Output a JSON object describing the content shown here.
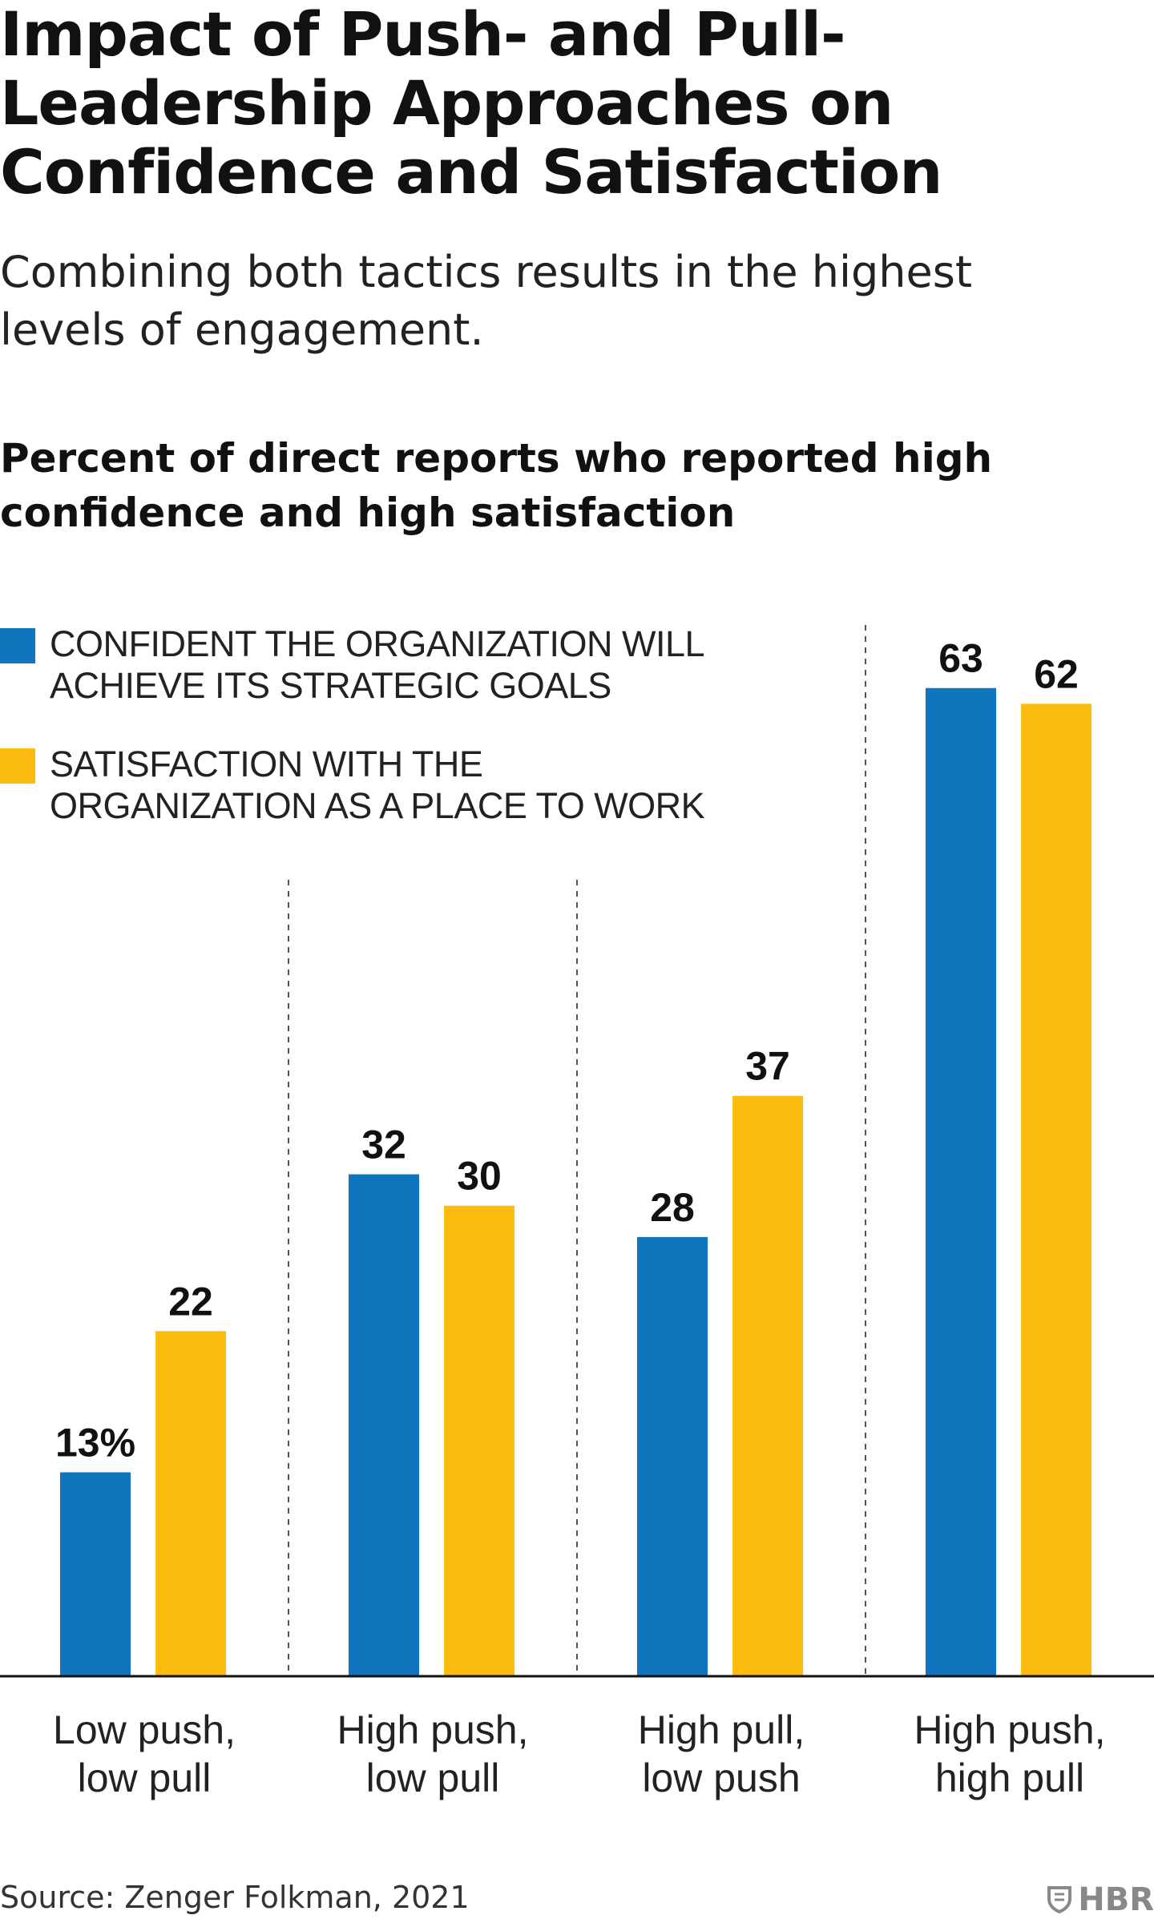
{
  "title": "Impact of Push- and Pull-Leadership Approaches on Confidence and Satisfaction",
  "subtitle": "Combining both tactics results in the highest levels of engagement.",
  "source": "Source: Zenger Folkman, 2021",
  "logo": {
    "text": "HBR",
    "icon": "shield-icon"
  },
  "chart_data": {
    "type": "bar",
    "title": "Percent of direct reports who reported high confidence and high satisfaction",
    "categories": [
      [
        "Low push,",
        "low pull"
      ],
      [
        "High push,",
        "low pull"
      ],
      [
        "High pull,",
        "low push"
      ],
      [
        "High push,",
        "high pull"
      ]
    ],
    "series": [
      {
        "name": "CONFIDENT THE ORGANIZATION WILL ACHIEVE ITS STRATEGIC GOALS",
        "color": "#1175BE",
        "values": [
          13,
          32,
          28,
          63
        ]
      },
      {
        "name": "SATISFACTION WITH THE ORGANIZATION AS A PLACE TO WORK",
        "color": "#FBBB0F",
        "values": [
          22,
          30,
          37,
          62
        ]
      }
    ],
    "value_labels": [
      [
        "13%",
        "32",
        "28",
        "63"
      ],
      [
        "22",
        "30",
        "37",
        "62"
      ]
    ],
    "ylim": [
      0,
      66
    ],
    "grid": false,
    "group_dividers": "dashed",
    "legend": "top-left"
  }
}
